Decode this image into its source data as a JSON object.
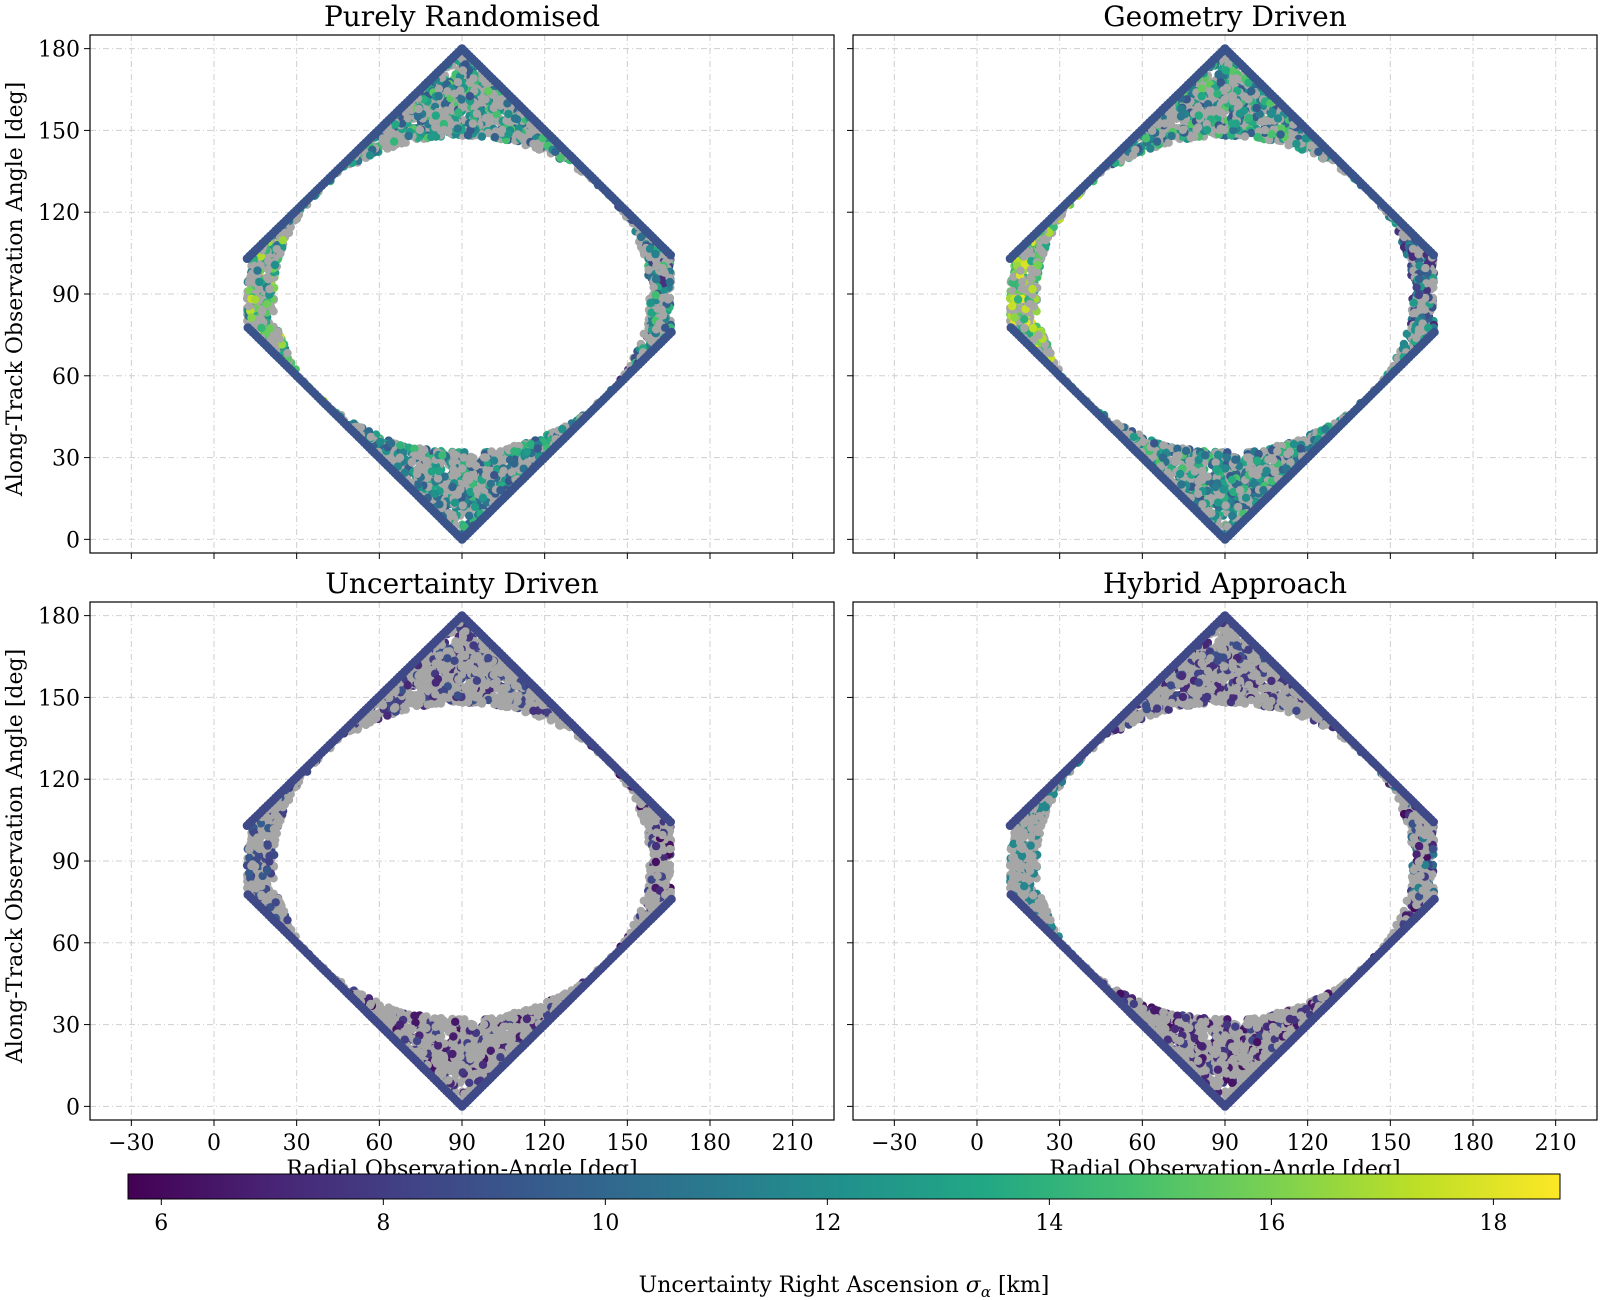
{
  "chart_data": {
    "type": "scatter",
    "layout": "2x2 panels, shared x and y axes, one horizontal colorbar",
    "x_axis": {
      "label": "Radial Observation-Angle [deg]",
      "ticks": [
        -30,
        0,
        30,
        60,
        90,
        120,
        150,
        180,
        210
      ],
      "tick_labels": [
        "−30",
        "0",
        "30",
        "60",
        "90",
        "120",
        "150",
        "180",
        "210"
      ],
      "range": [
        -45,
        225
      ]
    },
    "y_axis": {
      "label": "Along-Track Observation Angle [deg]",
      "ticks": [
        0,
        30,
        60,
        90,
        120,
        150,
        180
      ],
      "tick_labels": [
        "0",
        "30",
        "60",
        "90",
        "120",
        "150",
        "180"
      ],
      "range": [
        -5,
        185
      ]
    },
    "grid": true,
    "colormap": "viridis",
    "unobserved_color": "#a6a6a6",
    "colorbar": {
      "label_prefix": "Uncertainty Right Ascension ",
      "label_symbol": "σ",
      "label_subscript": "α",
      "label_suffix": " [km]",
      "range": [
        5.7,
        18.6
      ],
      "ticks": [
        6,
        8,
        10,
        12,
        14,
        16,
        18
      ],
      "tick_labels": [
        "6",
        "8",
        "10",
        "12",
        "14",
        "16",
        "18"
      ],
      "orientation": "horizontal"
    },
    "envelope": {
      "outer_diamond": [
        [
          12,
          103
        ],
        [
          90,
          180
        ],
        [
          166,
          104
        ],
        [
          166,
          76
        ],
        [
          90,
          0
        ],
        [
          12,
          78
        ]
      ],
      "inner_hole": {
        "center": [
          90,
          90
        ],
        "x_semi_axis": 68,
        "y_semi_axis": 58
      }
    },
    "panels": [
      {
        "title": "Purely Randomised",
        "colored_fraction": 0.5,
        "sigma_by_region": {
          "left": [
            10.5,
            18.0
          ],
          "right": [
            7.0,
            15.0
          ],
          "top": [
            9.0,
            15.5
          ],
          "bottom": [
            9.0,
            14.5
          ],
          "outer_edge": 9.0
        }
      },
      {
        "title": "Geometry Driven",
        "colored_fraction": 0.55,
        "sigma_by_region": {
          "left": [
            13.0,
            18.2
          ],
          "right": [
            7.0,
            13.5
          ],
          "top": [
            9.0,
            15.5
          ],
          "bottom": [
            9.0,
            15.0
          ],
          "outer_edge": 9.0
        }
      },
      {
        "title": "Uncertainty Driven",
        "colored_fraction": 0.25,
        "sigma_by_region": {
          "left": [
            8.0,
            9.5
          ],
          "right": [
            6.0,
            8.5
          ],
          "top": [
            7.0,
            9.0
          ],
          "bottom": [
            6.0,
            8.5
          ],
          "outer_edge": 8.5
        }
      },
      {
        "title": "Hybrid Approach",
        "colored_fraction": 0.3,
        "sigma_by_region": {
          "left": [
            11.0,
            12.0
          ],
          "right": [
            6.0,
            11.5
          ],
          "top": [
            7.0,
            9.0
          ],
          "bottom": [
            6.0,
            8.5
          ],
          "outer_edge": 8.5
        }
      }
    ]
  }
}
